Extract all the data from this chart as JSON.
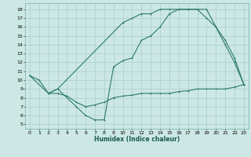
{
  "title": "",
  "xlabel": "Humidex (Indice chaleur)",
  "bg_color": "#cce8e4",
  "grid_color": "#aacccc",
  "line_color": "#2d7a6e",
  "xlim": [
    -0.5,
    23.5
  ],
  "ylim": [
    4.5,
    18.7
  ],
  "xticks": [
    0,
    1,
    2,
    3,
    4,
    5,
    6,
    7,
    8,
    9,
    10,
    11,
    12,
    13,
    14,
    15,
    16,
    17,
    18,
    19,
    20,
    21,
    22,
    23
  ],
  "yticks": [
    5,
    6,
    7,
    8,
    9,
    10,
    11,
    12,
    13,
    14,
    15,
    16,
    17,
    18
  ],
  "line1_x": [
    0,
    1,
    2,
    3,
    10,
    11,
    12,
    13,
    14,
    15,
    16,
    17,
    18,
    19,
    20,
    21,
    22,
    23
  ],
  "line1_y": [
    10.5,
    10.0,
    8.5,
    9.0,
    16.5,
    17.0,
    17.5,
    17.5,
    18.0,
    18.0,
    18.0,
    18.0,
    18.0,
    17.0,
    16.0,
    14.0,
    12.0,
    9.5
  ],
  "line2_x": [
    0,
    2,
    3,
    5,
    6,
    7,
    8,
    9,
    10,
    11,
    12,
    13,
    14,
    15,
    16,
    17,
    18,
    19,
    20,
    21,
    22,
    23
  ],
  "line2_y": [
    10.5,
    8.5,
    9.0,
    7.0,
    6.0,
    5.5,
    5.5,
    11.5,
    12.2,
    12.5,
    14.5,
    15.0,
    16.0,
    17.5,
    18.0,
    18.0,
    18.0,
    18.0,
    16.0,
    14.5,
    12.5,
    9.5
  ],
  "line3_x": [
    2,
    3,
    4,
    5,
    6,
    7,
    8,
    9,
    10,
    11,
    12,
    13,
    14,
    15,
    16,
    17,
    18,
    19,
    20,
    21,
    22,
    23
  ],
  "line3_y": [
    8.5,
    8.5,
    8.2,
    7.5,
    7.0,
    7.2,
    7.5,
    8.0,
    8.2,
    8.3,
    8.5,
    8.5,
    8.5,
    8.5,
    8.7,
    8.8,
    9.0,
    9.0,
    9.0,
    9.0,
    9.2,
    9.5
  ]
}
